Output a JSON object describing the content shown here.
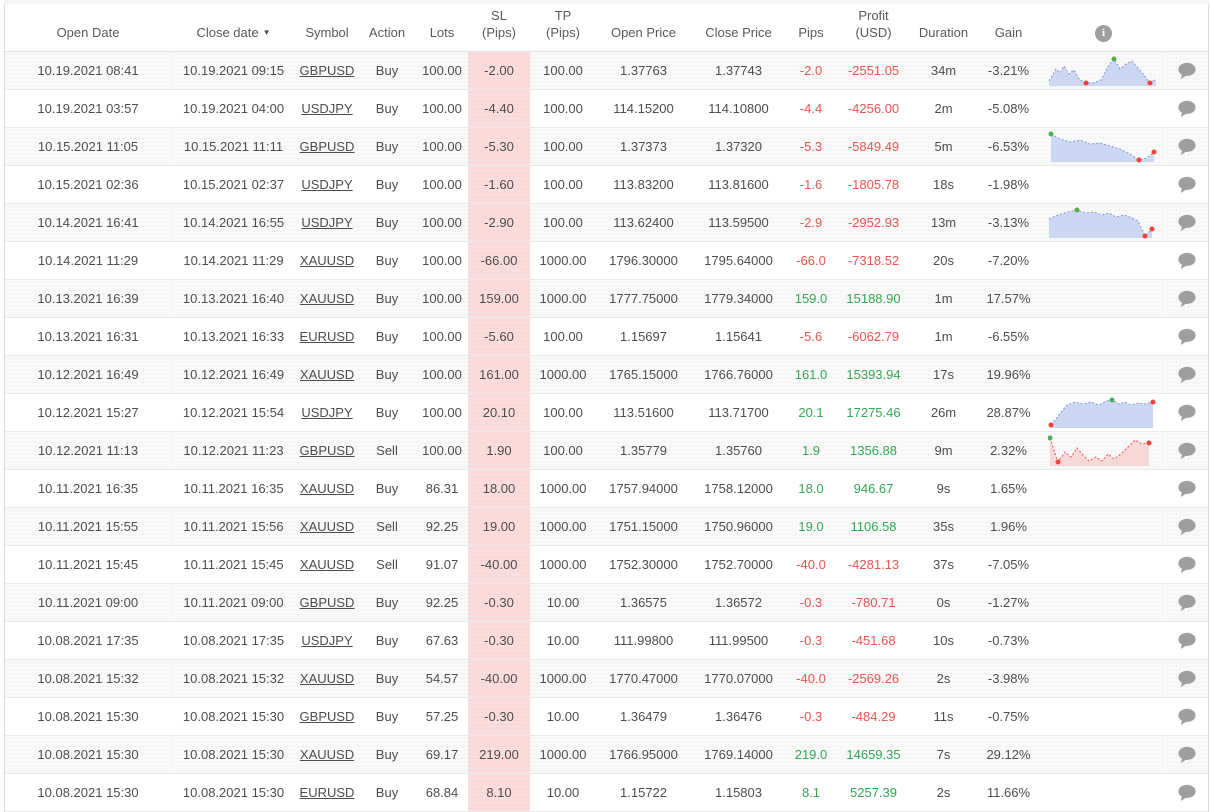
{
  "colors": {
    "positive": "#33a854",
    "negative": "#ef5350",
    "sl_column_bg": "#fbdcdc",
    "spark_blue_line": "#8496cf",
    "spark_blue_fill": "#ccd7f3",
    "spark_red_line": "#ef5350",
    "spark_red_fill": "#f6d8d6",
    "dot_green": "#4caf50",
    "dot_red": "#f44336",
    "comment_icon": "#9e9e9e",
    "info_icon_bg": "#9e9e9e"
  },
  "icons": {
    "sort_desc_arrow": "▼",
    "info_glyph": "i",
    "info_icon_name": "info-icon",
    "comment_icon_name": "comment-bubble-icon"
  },
  "table": {
    "columns": [
      {
        "key": "open_date",
        "label": "Open Date"
      },
      {
        "key": "close_date",
        "label": "Close date",
        "sorted": "desc"
      },
      {
        "key": "symbol",
        "label": "Symbol"
      },
      {
        "key": "action",
        "label": "Action"
      },
      {
        "key": "lots",
        "label": "Lots"
      },
      {
        "key": "sl_pips",
        "label": "SL\n(Pips)"
      },
      {
        "key": "tp_pips",
        "label": "TP\n(Pips)"
      },
      {
        "key": "open_price",
        "label": "Open Price"
      },
      {
        "key": "close_price",
        "label": "Close Price"
      },
      {
        "key": "pips",
        "label": "Pips"
      },
      {
        "key": "profit_usd",
        "label": "Profit\n(USD)"
      },
      {
        "key": "duration",
        "label": "Duration"
      },
      {
        "key": "gain",
        "label": "Gain"
      },
      {
        "key": "chart",
        "label": "",
        "icon": "info-icon"
      },
      {
        "key": "comment",
        "label": ""
      }
    ],
    "rows": [
      {
        "open_date": "10.19.2021 08:41",
        "close_date": "10.19.2021 09:15",
        "symbol": "GBPUSD",
        "action": "Buy",
        "lots": "100.00",
        "sl_pips": "-2.00",
        "tp_pips": "100.00",
        "open_price": "1.37763",
        "close_price": "1.37743",
        "pips": "-2.0",
        "profit_usd": "-2551.05",
        "duration": "34m",
        "gain": "-3.21%",
        "has_comment": true,
        "chart": {
          "color": "blue",
          "points": [
            [
              1,
              26
            ],
            [
              8,
              14
            ],
            [
              12,
              18
            ],
            [
              16,
              11
            ],
            [
              21,
              19
            ],
            [
              26,
              15
            ],
            [
              31,
              24
            ],
            [
              38,
              28
            ],
            [
              45,
              28
            ],
            [
              53,
              25
            ],
            [
              61,
              10
            ],
            [
              66,
              4
            ],
            [
              72,
              14
            ],
            [
              78,
              9
            ],
            [
              84,
              6
            ],
            [
              90,
              13
            ],
            [
              96,
              20
            ],
            [
              102,
              28
            ],
            [
              108,
              24
            ]
          ],
          "dots": [
            {
              "i": 7,
              "c": "red"
            },
            {
              "i": 11,
              "c": "green"
            },
            {
              "i": 17,
              "c": "red"
            }
          ]
        }
      },
      {
        "open_date": "10.19.2021 03:57",
        "close_date": "10.19.2021 04:00",
        "symbol": "USDJPY",
        "action": "Buy",
        "lots": "100.00",
        "sl_pips": "-4.40",
        "tp_pips": "100.00",
        "open_price": "114.15200",
        "close_price": "114.10800",
        "pips": "-4.4",
        "profit_usd": "-4256.00",
        "duration": "2m",
        "gain": "-5.08%",
        "has_comment": true,
        "chart": null
      },
      {
        "open_date": "10.15.2021 11:05",
        "close_date": "10.15.2021 11:11",
        "symbol": "GBPUSD",
        "action": "Buy",
        "lots": "100.00",
        "sl_pips": "-5.30",
        "tp_pips": "100.00",
        "open_price": "1.37373",
        "close_price": "1.37320",
        "pips": "-5.3",
        "profit_usd": "-5849.49",
        "duration": "5m",
        "gain": "-6.53%",
        "has_comment": true,
        "chart": {
          "color": "blue",
          "points": [
            [
              3,
              3
            ],
            [
              12,
              8
            ],
            [
              22,
              11
            ],
            [
              32,
              9
            ],
            [
              42,
              13
            ],
            [
              52,
              12
            ],
            [
              62,
              15
            ],
            [
              72,
              18
            ],
            [
              82,
              23
            ],
            [
              91,
              29
            ],
            [
              99,
              27
            ],
            [
              106,
              21
            ]
          ],
          "dots": [
            {
              "i": 0,
              "c": "green"
            },
            {
              "i": 9,
              "c": "red"
            },
            {
              "i": 11,
              "c": "red"
            }
          ]
        }
      },
      {
        "open_date": "10.15.2021 02:36",
        "close_date": "10.15.2021 02:37",
        "symbol": "USDJPY",
        "action": "Buy",
        "lots": "100.00",
        "sl_pips": "-1.60",
        "tp_pips": "100.00",
        "open_price": "113.83200",
        "close_price": "113.81600",
        "pips": "-1.6",
        "profit_usd": "-1805.78",
        "duration": "18s",
        "gain": "-1.98%",
        "has_comment": true,
        "chart": null
      },
      {
        "open_date": "10.14.2021 16:41",
        "close_date": "10.14.2021 16:55",
        "symbol": "USDJPY",
        "action": "Buy",
        "lots": "100.00",
        "sl_pips": "-2.90",
        "tp_pips": "100.00",
        "open_price": "113.62400",
        "close_price": "113.59500",
        "pips": "-2.9",
        "profit_usd": "-2952.93",
        "duration": "13m",
        "gain": "-3.13%",
        "has_comment": true,
        "chart": {
          "color": "blue",
          "points": [
            [
              1,
              12
            ],
            [
              10,
              8
            ],
            [
              20,
              5
            ],
            [
              29,
              3
            ],
            [
              38,
              6
            ],
            [
              46,
              5
            ],
            [
              54,
              8
            ],
            [
              61,
              6
            ],
            [
              68,
              10
            ],
            [
              76,
              8
            ],
            [
              84,
              11
            ],
            [
              90,
              14
            ],
            [
              97,
              29
            ],
            [
              104,
              22
            ]
          ],
          "dots": [
            {
              "i": 3,
              "c": "green"
            },
            {
              "i": 12,
              "c": "red"
            },
            {
              "i": 13,
              "c": "red"
            }
          ]
        }
      },
      {
        "open_date": "10.14.2021 11:29",
        "close_date": "10.14.2021 11:29",
        "symbol": "XAUUSD",
        "action": "Buy",
        "lots": "100.00",
        "sl_pips": "-66.00",
        "tp_pips": "1000.00",
        "open_price": "1796.30000",
        "close_price": "1795.64000",
        "pips": "-66.0",
        "profit_usd": "-7318.52",
        "duration": "20s",
        "gain": "-7.20%",
        "has_comment": true,
        "chart": null
      },
      {
        "open_date": "10.13.2021 16:39",
        "close_date": "10.13.2021 16:40",
        "symbol": "XAUUSD",
        "action": "Buy",
        "lots": "100.00",
        "sl_pips": "159.00",
        "tp_pips": "1000.00",
        "open_price": "1777.75000",
        "close_price": "1779.34000",
        "pips": "159.0",
        "profit_usd": "15188.90",
        "duration": "1m",
        "gain": "17.57%",
        "has_comment": true,
        "chart": null
      },
      {
        "open_date": "10.13.2021 16:31",
        "close_date": "10.13.2021 16:33",
        "symbol": "EURUSD",
        "action": "Buy",
        "lots": "100.00",
        "sl_pips": "-5.60",
        "tp_pips": "100.00",
        "open_price": "1.15697",
        "close_price": "1.15641",
        "pips": "-5.6",
        "profit_usd": "-6062.79",
        "duration": "1m",
        "gain": "-6.55%",
        "has_comment": true,
        "chart": null
      },
      {
        "open_date": "10.12.2021 16:49",
        "close_date": "10.12.2021 16:49",
        "symbol": "XAUUSD",
        "action": "Buy",
        "lots": "100.00",
        "sl_pips": "161.00",
        "tp_pips": "1000.00",
        "open_price": "1765.15000",
        "close_price": "1766.76000",
        "pips": "161.0",
        "profit_usd": "15393.94",
        "duration": "17s",
        "gain": "19.96%",
        "has_comment": true,
        "chart": null
      },
      {
        "open_date": "10.12.2021 15:27",
        "close_date": "10.12.2021 15:54",
        "symbol": "USDJPY",
        "action": "Buy",
        "lots": "100.00",
        "sl_pips": "20.10",
        "tp_pips": "100.00",
        "open_price": "113.51600",
        "close_price": "113.71700",
        "pips": "20.1",
        "profit_usd": "17275.46",
        "duration": "26m",
        "gain": "28.87%",
        "has_comment": true,
        "chart": {
          "color": "blue",
          "points": [
            [
              3,
              28
            ],
            [
              11,
              18
            ],
            [
              19,
              8
            ],
            [
              27,
              5
            ],
            [
              35,
              7
            ],
            [
              43,
              5
            ],
            [
              51,
              8
            ],
            [
              58,
              4
            ],
            [
              64,
              3
            ],
            [
              71,
              7
            ],
            [
              77,
              5
            ],
            [
              83,
              8
            ],
            [
              90,
              6
            ],
            [
              97,
              7
            ],
            [
              105,
              5
            ]
          ],
          "dots": [
            {
              "i": 0,
              "c": "red"
            },
            {
              "i": 8,
              "c": "green"
            },
            {
              "i": 14,
              "c": "red"
            }
          ]
        }
      },
      {
        "open_date": "10.12.2021 11:13",
        "close_date": "10.12.2021 11:23",
        "symbol": "GBPUSD",
        "action": "Sell",
        "lots": "100.00",
        "sl_pips": "1.90",
        "tp_pips": "100.00",
        "open_price": "1.35779",
        "close_price": "1.35760",
        "pips": "1.9",
        "profit_usd": "1356.88",
        "duration": "9m",
        "gain": "2.32%",
        "has_comment": true,
        "chart": {
          "color": "red",
          "points": [
            [
              2,
              3
            ],
            [
              10,
              27
            ],
            [
              17,
              17
            ],
            [
              23,
              22
            ],
            [
              29,
              13
            ],
            [
              35,
              20
            ],
            [
              41,
              26
            ],
            [
              48,
              22
            ],
            [
              54,
              26
            ],
            [
              60,
              19
            ],
            [
              66,
              24
            ],
            [
              73,
              19
            ],
            [
              80,
              12
            ],
            [
              87,
              5
            ],
            [
              94,
              9
            ],
            [
              101,
              8
            ]
          ],
          "dots": [
            {
              "i": 0,
              "c": "green"
            },
            {
              "i": 1,
              "c": "red"
            },
            {
              "i": 15,
              "c": "red"
            }
          ]
        }
      },
      {
        "open_date": "10.11.2021 16:35",
        "close_date": "10.11.2021 16:35",
        "symbol": "XAUUSD",
        "action": "Buy",
        "lots": "86.31",
        "sl_pips": "18.00",
        "tp_pips": "1000.00",
        "open_price": "1757.94000",
        "close_price": "1758.12000",
        "pips": "18.0",
        "profit_usd": "946.67",
        "duration": "9s",
        "gain": "1.65%",
        "has_comment": true,
        "chart": null
      },
      {
        "open_date": "10.11.2021 15:55",
        "close_date": "10.11.2021 15:56",
        "symbol": "XAUUSD",
        "action": "Sell",
        "lots": "92.25",
        "sl_pips": "19.00",
        "tp_pips": "1000.00",
        "open_price": "1751.15000",
        "close_price": "1750.96000",
        "pips": "19.0",
        "profit_usd": "1106.58",
        "duration": "35s",
        "gain": "1.96%",
        "has_comment": true,
        "chart": null
      },
      {
        "open_date": "10.11.2021 15:45",
        "close_date": "10.11.2021 15:45",
        "symbol": "XAUUSD",
        "action": "Sell",
        "lots": "91.07",
        "sl_pips": "-40.00",
        "tp_pips": "1000.00",
        "open_price": "1752.30000",
        "close_price": "1752.70000",
        "pips": "-40.0",
        "profit_usd": "-4281.13",
        "duration": "37s",
        "gain": "-7.05%",
        "has_comment": true,
        "chart": null
      },
      {
        "open_date": "10.11.2021 09:00",
        "close_date": "10.11.2021 09:00",
        "symbol": "GBPUSD",
        "action": "Buy",
        "lots": "92.25",
        "sl_pips": "-0.30",
        "tp_pips": "10.00",
        "open_price": "1.36575",
        "close_price": "1.36572",
        "pips": "-0.3",
        "profit_usd": "-780.71",
        "duration": "0s",
        "gain": "-1.27%",
        "has_comment": true,
        "chart": null
      },
      {
        "open_date": "10.08.2021 17:35",
        "close_date": "10.08.2021 17:35",
        "symbol": "USDJPY",
        "action": "Buy",
        "lots": "67.63",
        "sl_pips": "-0.30",
        "tp_pips": "10.00",
        "open_price": "111.99800",
        "close_price": "111.99500",
        "pips": "-0.3",
        "profit_usd": "-451.68",
        "duration": "10s",
        "gain": "-0.73%",
        "has_comment": true,
        "chart": null
      },
      {
        "open_date": "10.08.2021 15:32",
        "close_date": "10.08.2021 15:32",
        "symbol": "XAUUSD",
        "action": "Buy",
        "lots": "54.57",
        "sl_pips": "-40.00",
        "tp_pips": "1000.00",
        "open_price": "1770.47000",
        "close_price": "1770.07000",
        "pips": "-40.0",
        "profit_usd": "-2569.26",
        "duration": "2s",
        "gain": "-3.98%",
        "has_comment": true,
        "chart": null
      },
      {
        "open_date": "10.08.2021 15:30",
        "close_date": "10.08.2021 15:30",
        "symbol": "GBPUSD",
        "action": "Buy",
        "lots": "57.25",
        "sl_pips": "-0.30",
        "tp_pips": "10.00",
        "open_price": "1.36479",
        "close_price": "1.36476",
        "pips": "-0.3",
        "profit_usd": "-484.29",
        "duration": "11s",
        "gain": "-0.75%",
        "has_comment": true,
        "chart": null
      },
      {
        "open_date": "10.08.2021 15:30",
        "close_date": "10.08.2021 15:30",
        "symbol": "XAUUSD",
        "action": "Buy",
        "lots": "69.17",
        "sl_pips": "219.00",
        "tp_pips": "1000.00",
        "open_price": "1766.95000",
        "close_price": "1769.14000",
        "pips": "219.0",
        "profit_usd": "14659.35",
        "duration": "7s",
        "gain": "29.12%",
        "has_comment": true,
        "chart": null
      },
      {
        "open_date": "10.08.2021 15:30",
        "close_date": "10.08.2021 15:30",
        "symbol": "EURUSD",
        "action": "Buy",
        "lots": "68.84",
        "sl_pips": "8.10",
        "tp_pips": "10.00",
        "open_price": "1.15722",
        "close_price": "1.15803",
        "pips": "8.1",
        "profit_usd": "5257.39",
        "duration": "2s",
        "gain": "11.66%",
        "has_comment": true,
        "chart": null
      }
    ]
  }
}
